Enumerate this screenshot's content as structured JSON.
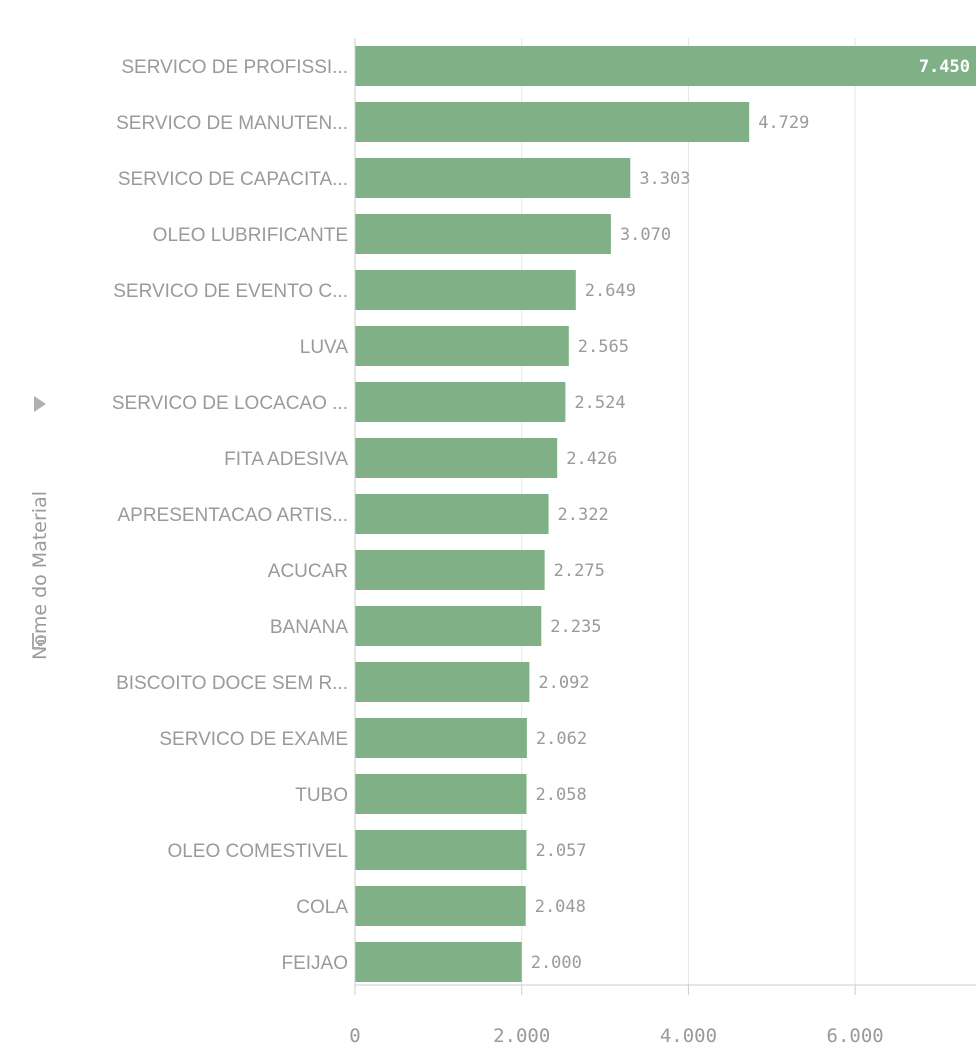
{
  "chart_data": {
    "type": "bar",
    "orientation": "horizontal",
    "categories": [
      "SERVICO DE PROFISSI...",
      "SERVICO DE MANUTEN...",
      "SERVICO DE CAPACITA...",
      "OLEO LUBRIFICANTE",
      "SERVICO DE EVENTO C...",
      "LUVA",
      "SERVICO DE LOCACAO ...",
      "FITA ADESIVA",
      "APRESENTACAO ARTIS...",
      "ACUCAR",
      "BANANA",
      "BISCOITO DOCE SEM R...",
      "SERVICO DE EXAME",
      "TUBO",
      "OLEO COMESTIVEL",
      "COLA",
      "FEIJAO"
    ],
    "values": [
      7450,
      4729,
      3303,
      3070,
      2649,
      2565,
      2524,
      2426,
      2322,
      2275,
      2235,
      2092,
      2062,
      2058,
      2057,
      2048,
      2000
    ],
    "value_labels": [
      "7.450",
      "4.729",
      "3.303",
      "3.070",
      "2.649",
      "2.565",
      "2.524",
      "2.426",
      "2.322",
      "2.275",
      "2.235",
      "2.092",
      "2.062",
      "2.058",
      "2.057",
      "2.048",
      "2.000"
    ],
    "xticks": [
      0,
      2000,
      4000,
      6000
    ],
    "xtick_labels": [
      "0",
      "2.000",
      "4.000",
      "6.000"
    ],
    "xlim": [
      0,
      7450
    ],
    "ylabel": "Nome do Material",
    "title": "",
    "grid": true,
    "colors": {
      "bar": "#80b186",
      "grid": "#e6e6e6",
      "axis": "#cccccc",
      "text": "#9a9a9a"
    }
  }
}
